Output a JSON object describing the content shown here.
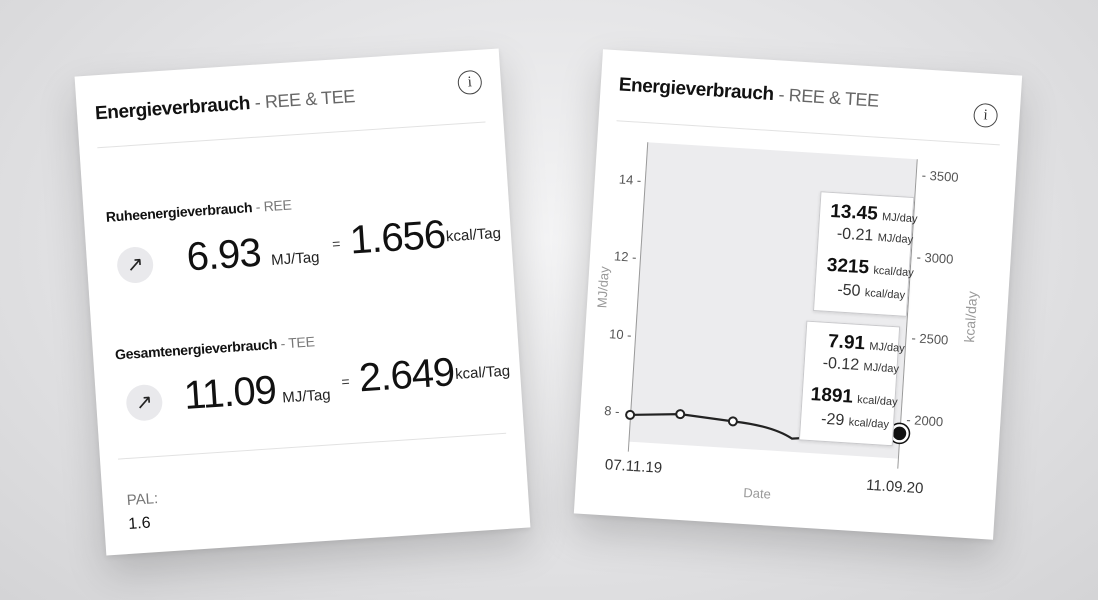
{
  "left_card": {
    "title_bold": "Energieverbrauch",
    "title_sub": "- REE & TEE",
    "info_glyph": "i",
    "ree": {
      "label_bold": "Ruheenergieverbrauch",
      "label_sub": "- REE",
      "trend_icon": "arrow-up-right-icon",
      "trend_glyph": "↗",
      "mj_value": "6.93",
      "mj_unit": "MJ/Tag",
      "equals": "=",
      "kcal_value": "1.656",
      "kcal_unit": "kcal/Tag"
    },
    "tee": {
      "label_bold": "Gesamtenergieverbrauch",
      "label_sub": "- TEE",
      "trend_icon": "arrow-up-right-icon",
      "trend_glyph": "↗",
      "mj_value": "11.09",
      "mj_unit": "MJ/Tag",
      "equals": "=",
      "kcal_value": "2.649",
      "kcal_unit": "kcal/Tag"
    },
    "pal_label": "PAL:",
    "pal_value": "1.6"
  },
  "right_card": {
    "title_bold": "Energieverbrauch",
    "title_sub": "- REE & TEE",
    "info_glyph": "i",
    "tooltip_tee": {
      "mj": "13.45",
      "mj_unit": "MJ/day",
      "mj_delta": "-0.21",
      "mj_delta_unit": "MJ/day",
      "kcal": "3215",
      "kcal_unit": "kcal/day",
      "kcal_delta": "-50",
      "kcal_delta_unit": "kcal/day"
    },
    "tooltip_ree": {
      "mj": "7.91",
      "mj_unit": "MJ/day",
      "mj_delta": "-0.12",
      "mj_delta_unit": "MJ/day",
      "kcal": "1891",
      "kcal_unit": "kcal/day",
      "kcal_delta": "-29",
      "kcal_delta_unit": "kcal/day"
    },
    "start_date": "07.11.19",
    "end_date": "11.09.20"
  },
  "chart_data": {
    "type": "line",
    "xlabel": "Date",
    "ylabel": "MJ/day",
    "y2label": "kcal/day",
    "ylim": [
      7,
      15
    ],
    "y2lim": [
      1700,
      3600
    ],
    "yticks": [
      "8",
      "10",
      "12",
      "14"
    ],
    "y2ticks": [
      "2000",
      "2500",
      "3000",
      "3500"
    ],
    "x": [
      "07.11.19",
      "",
      "",
      "11.09.20"
    ],
    "series": [
      {
        "values": [
          7.95,
          8.05,
          7.95,
          7.91
        ],
        "color": "#222222"
      }
    ],
    "grid": false
  }
}
